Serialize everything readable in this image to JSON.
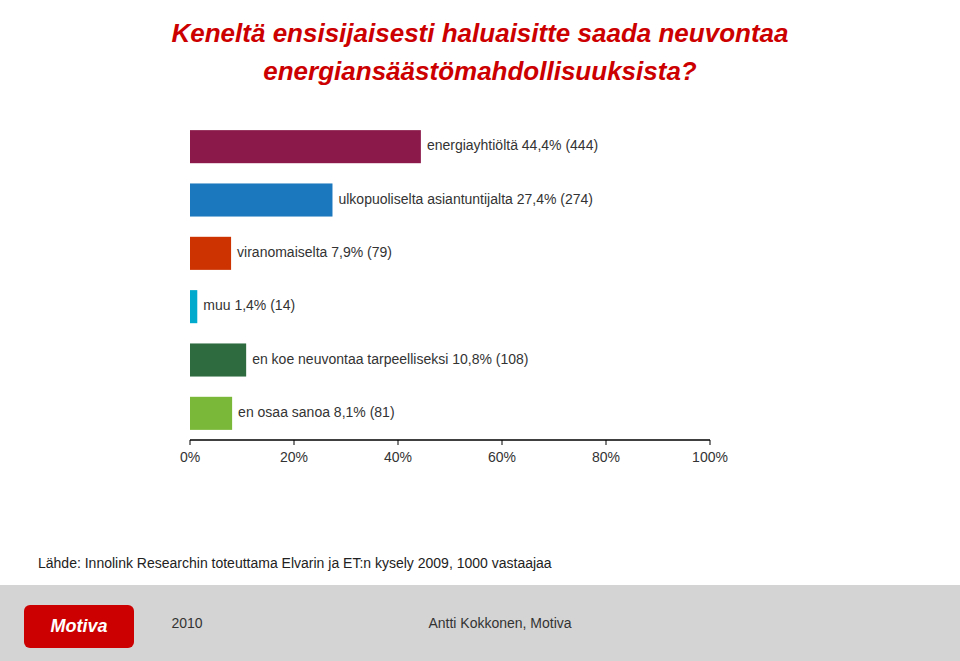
{
  "chart_data": {
    "type": "bar",
    "orientation": "horizontal",
    "title": "Keneltä ensisijaisesti haluaisitte saada neuvontaa",
    "subtitle": "energiansäästömahdollisuuksista?",
    "categories": [
      "energiayhtiöltä 44,4% (444)",
      "ulkopuoliselta asiantuntijalta 27,4% (274)",
      "viranomaiselta 7,9% (79)",
      "muu 1,4% (14)",
      "en koe neuvontaa tarpeelliseksi 10,8% (108)",
      "en osaa sanoa 8,1% (81)"
    ],
    "values": [
      44.4,
      27.4,
      7.9,
      1.4,
      10.8,
      8.1
    ],
    "colors": [
      "#8B1A4A",
      "#1B78BE",
      "#CC3300",
      "#00AACC",
      "#2E6B3E",
      "#7AB83A"
    ],
    "xlim": [
      0,
      100
    ],
    "xticks": [
      {
        "value": 0,
        "label": "0%"
      },
      {
        "value": 20,
        "label": "20%"
      },
      {
        "value": 40,
        "label": "40%"
      },
      {
        "value": 60,
        "label": "60%"
      },
      {
        "value": 80,
        "label": "80%"
      },
      {
        "value": 100,
        "label": "100%"
      }
    ],
    "grid": false,
    "tick_labels": "x",
    "annotations": [
      "Lähde: Innolink Researchin toteuttama Elvarin ja ET:n kysely 2009, 1000 vastaajaa",
      "Motiva",
      "2010",
      "Antti Kokkonen, Motiva"
    ]
  }
}
